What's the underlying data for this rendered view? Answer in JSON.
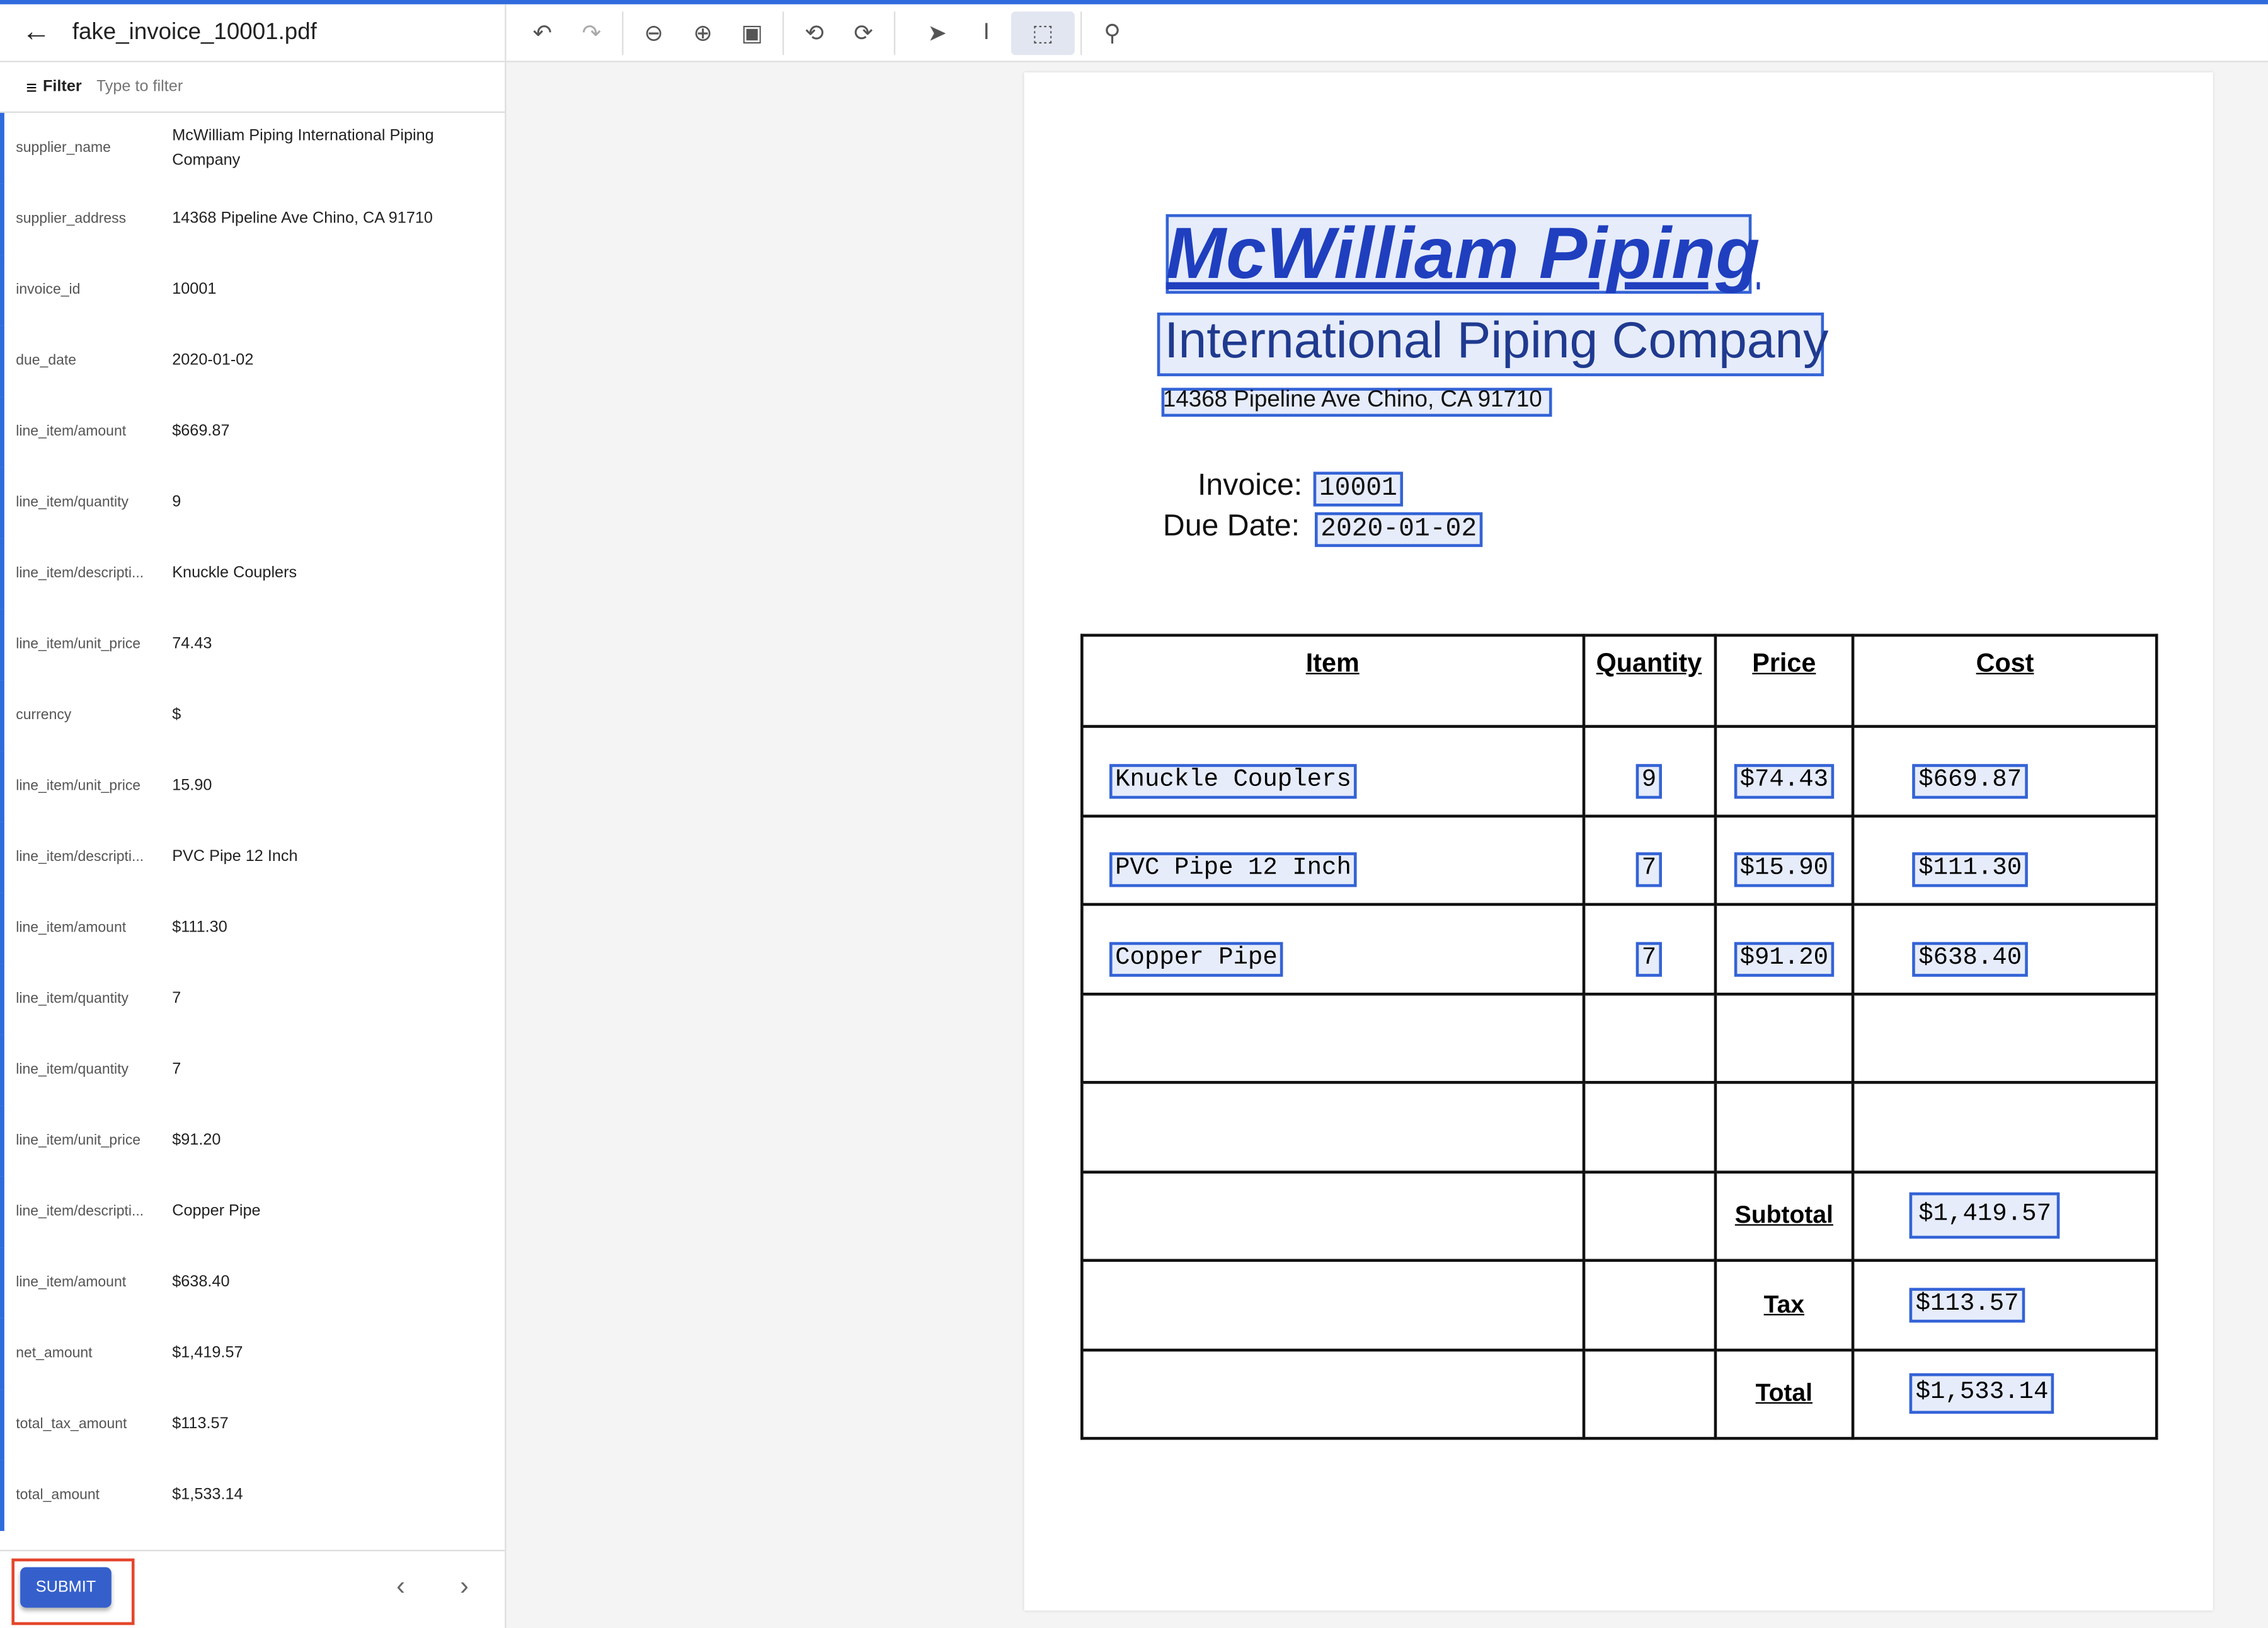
{
  "header": {
    "file_name": "fake_invoice_10001.pdf",
    "back_icon": "arrow-left-icon"
  },
  "filter": {
    "label": "Filter",
    "placeholder": "Type to filter"
  },
  "fields": [
    {
      "key": "supplier_name",
      "value": "McWilliam Piping International Piping Company"
    },
    {
      "key": "supplier_address",
      "value": "14368 Pipeline Ave Chino, CA 91710"
    },
    {
      "key": "invoice_id",
      "value": "10001"
    },
    {
      "key": "due_date",
      "value": "2020-01-02"
    },
    {
      "key": "line_item/amount",
      "value": "$669.87"
    },
    {
      "key": "line_item/quantity",
      "value": "9"
    },
    {
      "key": "line_item/descripti...",
      "value": "Knuckle Couplers"
    },
    {
      "key": "line_item/unit_price",
      "value": "74.43"
    },
    {
      "key": "currency",
      "value": "$"
    },
    {
      "key": "line_item/unit_price",
      "value": "15.90"
    },
    {
      "key": "line_item/descripti...",
      "value": "PVC Pipe 12 Inch"
    },
    {
      "key": "line_item/amount",
      "value": "$111.30"
    },
    {
      "key": "line_item/quantity",
      "value": "7"
    },
    {
      "key": "line_item/quantity",
      "value": "7"
    },
    {
      "key": "line_item/unit_price",
      "value": "$91.20"
    },
    {
      "key": "line_item/descripti...",
      "value": "Copper Pipe"
    },
    {
      "key": "line_item/amount",
      "value": "$638.40"
    },
    {
      "key": "net_amount",
      "value": "$1,419.57"
    },
    {
      "key": "total_tax_amount",
      "value": "$113.57"
    },
    {
      "key": "total_amount",
      "value": "$1,533.14"
    }
  ],
  "footer": {
    "submit_label": "SUBMIT",
    "prev_icon": "chevron-left-icon",
    "next_icon": "chevron-right-icon"
  },
  "toolbar": {
    "icons": [
      "undo-icon",
      "redo-icon",
      "zoom-out-icon",
      "zoom-in-icon",
      "fit-page-icon",
      "rotate-left-icon",
      "rotate-right-icon",
      "pointer-icon",
      "text-select-icon",
      "box-select-icon",
      "search-icon"
    ],
    "active": "box-select-icon"
  },
  "document": {
    "company_line1": "McWilliam Piping",
    "company_line2": "International Piping Company",
    "address": "14368 Pipeline Ave Chino, CA 91710",
    "invoice_label": "Invoice:",
    "invoice_value": "10001",
    "due_label": "Due Date:",
    "due_value": "2020-01-02",
    "headers": [
      "Item",
      "Quantity",
      "Price",
      "Cost"
    ],
    "items": [
      {
        "item": "Knuckle Couplers",
        "qty": "9",
        "price": "$74.43",
        "cost": "$669.87"
      },
      {
        "item": "PVC Pipe 12 Inch",
        "qty": "7",
        "price": "$15.90",
        "cost": "$111.30"
      },
      {
        "item": "Copper Pipe",
        "qty": "7",
        "price": "$91.20",
        "cost": "$638.40"
      }
    ],
    "subtotal_label": "Subtotal",
    "subtotal": "$1,419.57",
    "tax_label": "Tax",
    "tax": "$113.57",
    "total_label": "Total",
    "total": "$1,533.14"
  },
  "colors": {
    "accent": "#2f6bdc",
    "submit": "#3560cc",
    "highlight": "#3463d6",
    "outline": "#e5452b"
  }
}
